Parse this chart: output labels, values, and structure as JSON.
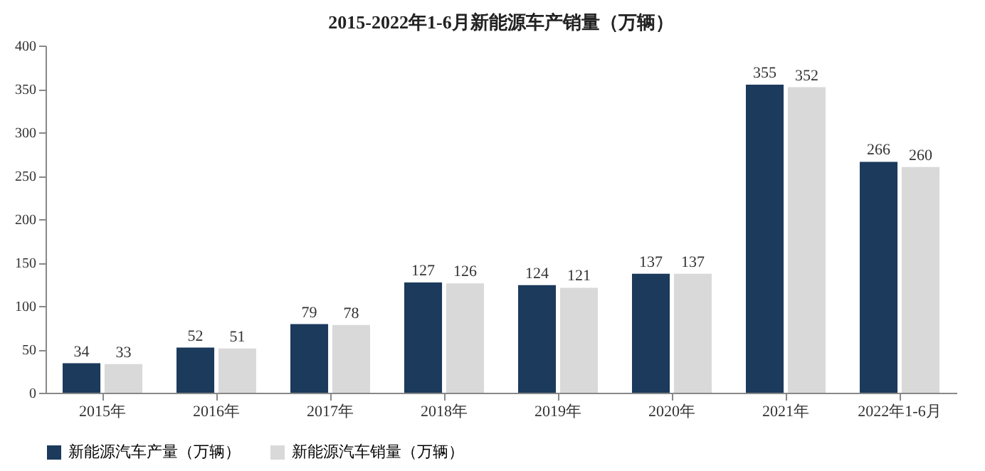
{
  "chart_data": {
    "type": "bar",
    "title": "2015-2022年1-6月新能源车产销量（万辆）",
    "categories": [
      "2015年",
      "2016年",
      "2017年",
      "2018年",
      "2019年",
      "2020年",
      "2021年",
      "2022年1-6月"
    ],
    "series": [
      {
        "name": "新能源汽车产量（万辆）",
        "color": "#1b3a5c",
        "values": [
          34,
          52,
          79,
          127,
          124,
          137,
          355,
          266
        ]
      },
      {
        "name": "新能源汽车销量（万辆）",
        "color": "#d9d9d9",
        "values": [
          33,
          51,
          78,
          126,
          121,
          137,
          352,
          260
        ]
      }
    ],
    "ylim": [
      0,
      400
    ],
    "yticks": [
      0,
      50,
      100,
      150,
      200,
      250,
      300,
      350,
      400
    ],
    "grid": false,
    "legend": "bottom",
    "data_labels": true
  }
}
